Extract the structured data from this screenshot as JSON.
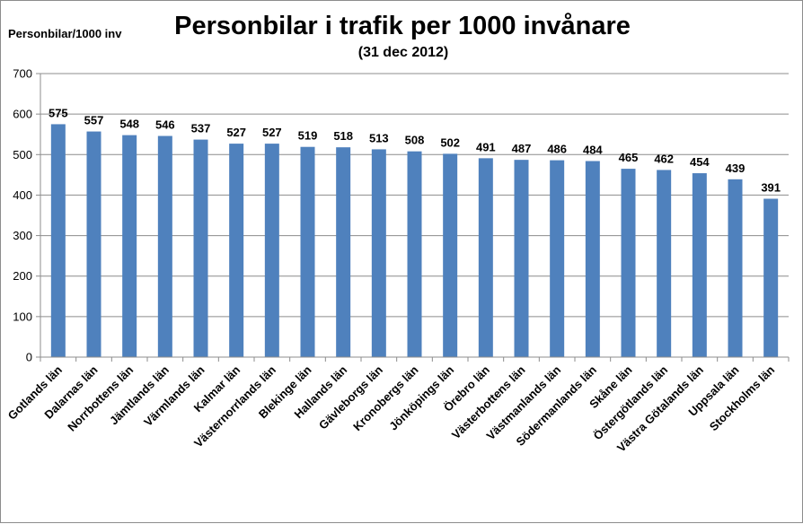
{
  "chart_data": {
    "type": "bar",
    "title": "Personbilar i trafik per 1000 invånare",
    "subtitle": "(31 dec 2012)",
    "ylabel": "Personbilar/1000 inv",
    "xlabel": "",
    "ylim": [
      0,
      700
    ],
    "yticks": [
      0,
      100,
      200,
      300,
      400,
      500,
      600,
      700
    ],
    "grid": true,
    "legend": "none",
    "bar_color": "#4f81bd",
    "categories": [
      "Gotlands län",
      "Dalarnas län",
      "Norrbottens län",
      "Jämtlands län",
      "Värmlands län",
      "Kalmar län",
      "Västernorrlands län",
      "Blekinge län",
      "Hallands län",
      "Gävleborgs län",
      "Kronobergs län",
      "Jönköpings län",
      "Örebro län",
      "Västerbottens län",
      "Västmanlands län",
      "Södermanlands län",
      "Skåne län",
      "Östergötlands län",
      "Västra Götalands län",
      "Uppsala län",
      "Stockholms län"
    ],
    "values": [
      575,
      557,
      548,
      546,
      537,
      527,
      527,
      519,
      518,
      513,
      508,
      502,
      491,
      487,
      486,
      484,
      465,
      462,
      454,
      439,
      391
    ]
  }
}
